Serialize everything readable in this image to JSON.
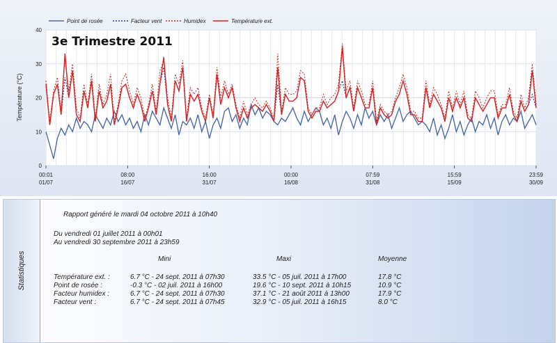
{
  "chart_title": "3e Trimestre 2011",
  "chart_data": {
    "type": "line",
    "title": "3e Trimestre 2011",
    "ylabel": "Température (°C)",
    "xlabel": "",
    "ylim": [
      0,
      40
    ],
    "yticks": [
      0,
      10,
      20,
      30,
      40
    ],
    "grid": true,
    "legend_position": "top",
    "x_ticks": [
      {
        "time": "00:01",
        "date": "01/07"
      },
      {
        "time": "08:00",
        "date": "16/07"
      },
      {
        "time": "16:00",
        "date": "31/07"
      },
      {
        "time": "00:00",
        "date": "16/08"
      },
      {
        "time": "07:59",
        "date": "31/08"
      },
      {
        "time": "15:59",
        "date": "15/09"
      },
      {
        "time": "23:59",
        "date": "30/09"
      }
    ],
    "series": [
      {
        "name": "Point de rosée",
        "color": "#4a6aaa",
        "dash": "solid",
        "values": [
          10,
          6,
          2,
          8,
          11,
          9,
          12,
          10,
          14,
          11,
          13,
          12,
          10,
          15,
          13,
          11,
          14,
          12,
          16,
          13,
          15,
          12,
          14,
          11,
          13,
          10,
          15,
          12,
          16,
          14,
          12,
          17,
          14,
          11,
          15,
          9,
          13,
          12,
          14,
          11,
          15,
          10,
          13,
          8,
          12,
          14,
          11,
          16,
          17,
          13,
          15,
          11,
          14,
          12,
          18,
          15,
          17,
          14,
          16,
          15,
          13,
          12,
          14,
          13,
          15,
          17,
          14,
          12,
          16,
          13,
          15,
          17,
          16,
          12,
          14,
          11,
          15,
          9,
          13,
          16,
          14,
          11,
          15,
          12,
          17,
          14,
          16,
          12,
          15,
          13,
          15,
          11,
          14,
          17,
          13,
          15,
          16,
          14,
          12,
          13,
          12,
          10,
          14,
          9,
          12,
          8,
          11,
          15,
          10,
          13,
          9,
          12,
          14,
          10,
          13,
          12,
          15,
          11,
          14,
          9,
          13,
          15,
          12,
          14,
          13,
          16,
          11,
          13,
          15,
          12
        ]
      },
      {
        "name": "Facteur vent",
        "color": "#1e3a8a",
        "dash": "dotted",
        "values": [
          24,
          12,
          21,
          24,
          15,
          26,
          20,
          28,
          15,
          13,
          22,
          17,
          25,
          13,
          22,
          17,
          19,
          24,
          12,
          17,
          23,
          24,
          20,
          17,
          21,
          18,
          13,
          17,
          22,
          15,
          24,
          29,
          18,
          13,
          25,
          22,
          29,
          13,
          21,
          19,
          21,
          16,
          13,
          20,
          14,
          27,
          18,
          23,
          20,
          23,
          17,
          13,
          17,
          14,
          17,
          18,
          17,
          16,
          18,
          16,
          13,
          24,
          15,
          21,
          19,
          19,
          20,
          26,
          25,
          16,
          14,
          16,
          16,
          19,
          17,
          18,
          19,
          22,
          25,
          20,
          23,
          16,
          23,
          20,
          17,
          17,
          23,
          12,
          17,
          15,
          14,
          15,
          19,
          21,
          25,
          21,
          15,
          15,
          13,
          13,
          23,
          17,
          21,
          19,
          17,
          13,
          20,
          16,
          20,
          17,
          20,
          14,
          13,
          20,
          18,
          16,
          18,
          20,
          20,
          14,
          17,
          17,
          21,
          15,
          13,
          19,
          16,
          18,
          21,
          17
        ]
      },
      {
        "name": "Humidex",
        "color": "#c0392b",
        "dash": "dotted",
        "values": [
          25,
          13,
          22,
          26,
          16,
          32,
          22,
          30,
          17,
          14,
          24,
          18,
          27,
          14,
          24,
          18,
          21,
          27,
          13,
          18,
          25,
          27,
          22,
          18,
          23,
          20,
          14,
          18,
          24,
          16,
          28,
          31,
          20,
          14,
          27,
          24,
          31,
          14,
          23,
          21,
          23,
          17,
          14,
          21,
          15,
          29,
          20,
          25,
          21,
          24,
          18,
          14,
          19,
          15,
          18,
          20,
          18,
          17,
          19,
          17,
          14,
          33,
          16,
          23,
          21,
          21,
          22,
          28,
          27,
          17,
          15,
          17,
          17,
          21,
          18,
          20,
          21,
          24,
          36,
          22,
          25,
          17,
          25,
          22,
          18,
          18,
          25,
          13,
          18,
          16,
          15,
          16,
          20,
          23,
          27,
          23,
          16,
          16,
          14,
          14,
          25,
          18,
          23,
          21,
          18,
          14,
          22,
          17,
          22,
          18,
          22,
          15,
          14,
          22,
          20,
          17,
          20,
          22,
          22,
          15,
          18,
          18,
          23,
          16,
          14,
          21,
          17,
          20,
          30,
          18
        ]
      },
      {
        "name": "Température ext.",
        "color": "#d62222",
        "dash": "solid",
        "values": [
          24,
          12,
          21,
          24,
          15,
          33,
          20,
          28,
          15,
          13,
          22,
          17,
          25,
          13,
          22,
          17,
          19,
          24,
          12,
          17,
          23,
          24,
          20,
          17,
          21,
          18,
          13,
          17,
          22,
          15,
          24,
          32,
          18,
          13,
          25,
          22,
          29,
          13,
          21,
          19,
          21,
          16,
          13,
          20,
          14,
          27,
          18,
          23,
          20,
          23,
          17,
          13,
          17,
          14,
          17,
          18,
          17,
          16,
          18,
          16,
          13,
          29,
          15,
          21,
          19,
          19,
          20,
          26,
          25,
          16,
          14,
          16,
          16,
          19,
          17,
          18,
          19,
          22,
          35,
          20,
          23,
          16,
          23,
          20,
          17,
          17,
          23,
          12,
          17,
          15,
          14,
          15,
          19,
          21,
          25,
          21,
          15,
          15,
          13,
          13,
          23,
          17,
          21,
          19,
          17,
          13,
          20,
          16,
          20,
          17,
          20,
          14,
          13,
          20,
          18,
          16,
          18,
          20,
          20,
          14,
          17,
          17,
          21,
          15,
          13,
          19,
          16,
          18,
          28,
          17
        ]
      }
    ]
  },
  "stats": {
    "side_label": "Statistiques",
    "report_line": "Rapport généré le mardi 04 octobre 2011 à 10h40",
    "from_line": "Du vendredi 01 juillet 2011 à 00h01",
    "to_line": "Au vendredi 30 septembre 2011 à 23h59",
    "headers": {
      "mini": "Mini",
      "maxi": "Maxi",
      "moyenne": "Moyenne"
    },
    "rows": [
      {
        "label": "Température ext. :",
        "mini": "6.7 °C - 24 sept. 2011 à 07h30",
        "maxi": "33.5 °C - 05 juil. 2011 à 17h00",
        "moyenne": "17.8 °C"
      },
      {
        "label": "Point de rosée :",
        "mini": "-0.3 °C - 02 juil. 2011 à 16h00",
        "maxi": "19.6 °C - 10 sept. 2011 à 10h15",
        "moyenne": "10.9 °C"
      },
      {
        "label": "Facteur humidex :",
        "mini": "6.7 °C - 24 sept. 2011 à 07h30",
        "maxi": "37.1 °C - 21 août 2011 à 13h00",
        "moyenne": "17.9 °C"
      },
      {
        "label": "Facteur vent :",
        "mini": "6.7 °C - 24 sept. 2011 à 07h45",
        "maxi": "32.9 °C - 05 juil. 2011 à 16h15",
        "moyenne": "8.0 °C"
      }
    ]
  }
}
